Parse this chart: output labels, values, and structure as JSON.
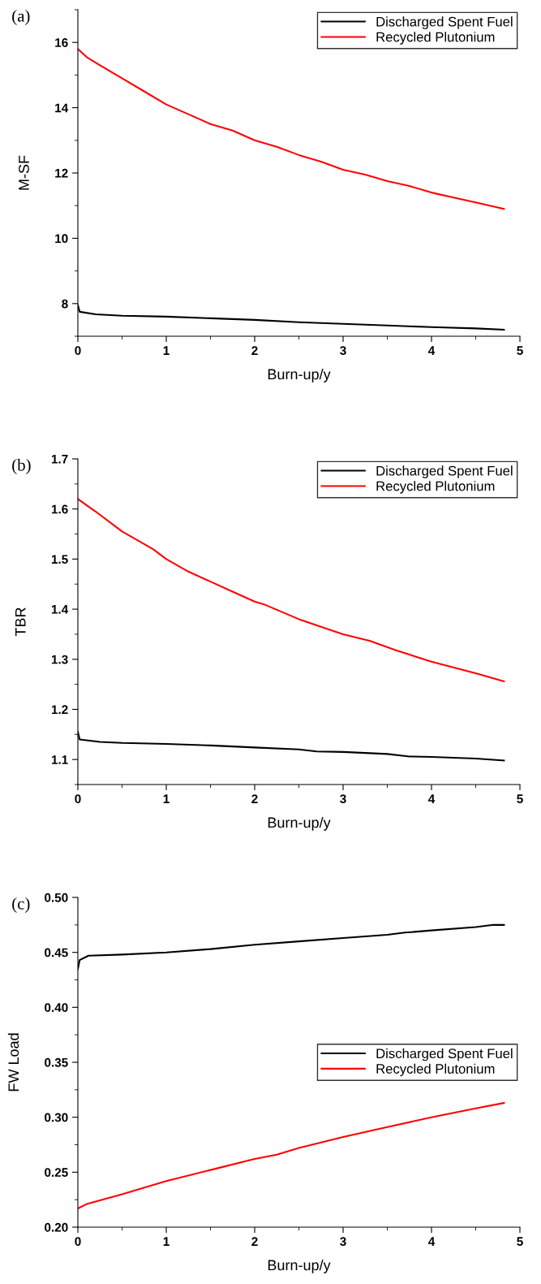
{
  "chart_data": [
    {
      "type": "line",
      "annotations": [
        "(a)"
      ],
      "xlabel": "Burn-up/y",
      "ylabel": "M-SF",
      "xlim": [
        0,
        5
      ],
      "xticks": [
        0,
        1,
        2,
        3,
        4,
        5
      ],
      "ylim": [
        7,
        17
      ],
      "yticks": [
        8,
        10,
        12,
        14,
        16
      ],
      "legend": "top right",
      "grid": false,
      "series": [
        {
          "name": "Discharged Spent Fuel",
          "color": "#000000",
          "x": [
            0,
            0.02,
            0.2,
            0.5,
            1,
            1.5,
            2,
            2.5,
            3,
            3.5,
            4,
            4.5,
            4.82
          ],
          "values": [
            7.95,
            7.75,
            7.67,
            7.63,
            7.6,
            7.55,
            7.5,
            7.43,
            7.38,
            7.33,
            7.28,
            7.24,
            7.2
          ]
        },
        {
          "name": "Recycled Plutonium",
          "color": "#ff0000",
          "x": [
            0,
            0.1,
            0.25,
            0.5,
            0.75,
            1,
            1.25,
            1.5,
            1.75,
            2,
            2.25,
            2.5,
            2.75,
            3,
            3.25,
            3.5,
            3.75,
            4,
            4.25,
            4.5,
            4.82
          ],
          "values": [
            15.8,
            15.55,
            15.3,
            14.9,
            14.5,
            14.1,
            13.8,
            13.5,
            13.3,
            13.0,
            12.8,
            12.55,
            12.35,
            12.1,
            11.95,
            11.75,
            11.6,
            11.4,
            11.25,
            11.1,
            10.9
          ]
        }
      ]
    },
    {
      "type": "line",
      "annotations": [
        "(b)"
      ],
      "xlabel": "Burn-up/y",
      "ylabel": "TBR",
      "xlim": [
        0,
        5
      ],
      "xticks": [
        0,
        1,
        2,
        3,
        4,
        5
      ],
      "ylim": [
        1.05,
        1.7
      ],
      "yticks": [
        1.1,
        1.2,
        1.3,
        1.4,
        1.5,
        1.6,
        1.7
      ],
      "legend": "top right",
      "grid": false,
      "series": [
        {
          "name": "Discharged Spent Fuel",
          "color": "#000000",
          "x": [
            0,
            0.02,
            0.25,
            0.5,
            1,
            1.5,
            2,
            2.5,
            2.7,
            3,
            3.5,
            3.65,
            3.75,
            4,
            4.5,
            4.82
          ],
          "values": [
            1.155,
            1.14,
            1.135,
            1.133,
            1.131,
            1.128,
            1.124,
            1.12,
            1.116,
            1.115,
            1.111,
            1.108,
            1.106,
            1.105,
            1.102,
            1.098
          ]
        },
        {
          "name": "Recycled Plutonium",
          "color": "#ff0000",
          "x": [
            0,
            0.2,
            0.5,
            0.75,
            0.85,
            1,
            1.25,
            1.5,
            1.75,
            2,
            2.1,
            2.5,
            2.75,
            3,
            3.3,
            3.6,
            4,
            4.5,
            4.82
          ],
          "values": [
            1.62,
            1.595,
            1.555,
            1.53,
            1.52,
            1.5,
            1.475,
            1.455,
            1.435,
            1.415,
            1.41,
            1.38,
            1.365,
            1.35,
            1.337,
            1.318,
            1.295,
            1.272,
            1.256
          ]
        }
      ]
    },
    {
      "type": "line",
      "annotations": [
        "(c)"
      ],
      "xlabel": "Burn-up/y",
      "ylabel": "FW Load",
      "xlim": [
        0,
        5
      ],
      "xticks": [
        0,
        1,
        2,
        3,
        4,
        5
      ],
      "ylim": [
        0.2,
        0.5
      ],
      "yticks": [
        {
          "value": 0.2,
          "label": "0.20"
        },
        {
          "value": 0.25,
          "label": "0.25"
        },
        {
          "value": 0.3,
          "label": "0.30"
        },
        {
          "value": 0.35,
          "label": "0.35"
        },
        {
          "value": 0.4,
          "label": "0.40"
        },
        {
          "value": 0.45,
          "label": "0.45"
        },
        {
          "value": 0.5,
          "label": "0.50"
        }
      ],
      "legend": "right",
      "grid": false,
      "series": [
        {
          "name": "Discharged Spent Fuel",
          "color": "#000000",
          "x": [
            0,
            0.02,
            0.12,
            0.5,
            1,
            1.5,
            2,
            2.5,
            3,
            3.5,
            3.7,
            4,
            4.5,
            4.7,
            4.82
          ],
          "values": [
            0.435,
            0.443,
            0.447,
            0.448,
            0.45,
            0.453,
            0.457,
            0.46,
            0.463,
            0.466,
            0.468,
            0.47,
            0.473,
            0.475,
            0.475
          ]
        },
        {
          "name": "Recycled Plutonium",
          "color": "#ff0000",
          "x": [
            0,
            0.1,
            0.5,
            1,
            1.5,
            2,
            2.25,
            2.5,
            3,
            3.5,
            4,
            4.5,
            4.82
          ],
          "values": [
            0.217,
            0.221,
            0.23,
            0.242,
            0.252,
            0.262,
            0.266,
            0.272,
            0.282,
            0.291,
            0.3,
            0.308,
            0.313
          ]
        }
      ]
    }
  ]
}
